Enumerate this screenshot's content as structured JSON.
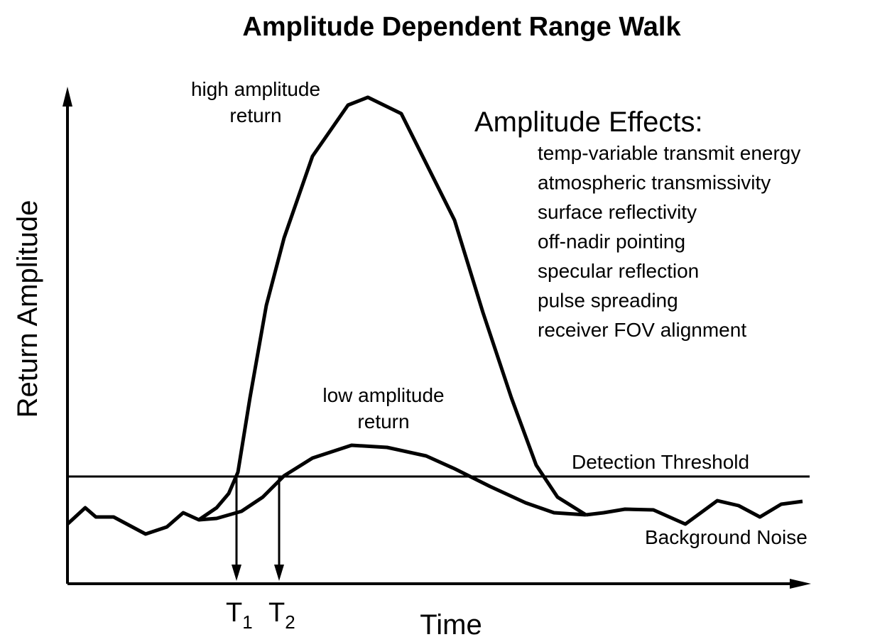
{
  "title": "Amplitude Dependent Range Walk",
  "axes": {
    "y_label": "Return Amplitude",
    "x_label": "Time"
  },
  "markers": [
    {
      "letter": "T",
      "subscript": "1"
    },
    {
      "letter": "T",
      "subscript": "2"
    }
  ],
  "curve_labels": {
    "high": [
      "high amplitude",
      "return"
    ],
    "low": [
      "low amplitude",
      "return"
    ]
  },
  "threshold_label": "Detection Threshold",
  "noise_label": "Background Noise",
  "effects": {
    "heading": "Amplitude Effects:",
    "items": [
      "temp-variable transmit energy",
      "atmospheric transmissivity",
      "surface reflectivity",
      "off-nadir pointing",
      "specular reflection",
      "pulse spreading",
      "receiver FOV alignment"
    ]
  }
}
